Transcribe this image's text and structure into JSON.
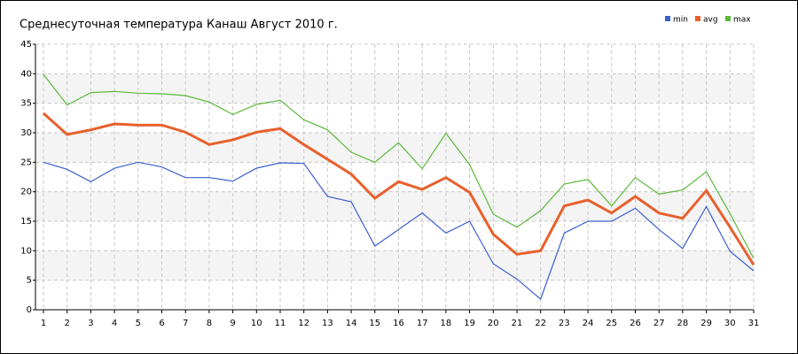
{
  "chart_data": {
    "type": "line",
    "title": "Среднесуточная температура Канаш  Август 2010 г.",
    "x": [
      1,
      2,
      3,
      4,
      5,
      6,
      7,
      8,
      9,
      10,
      11,
      12,
      13,
      14,
      15,
      16,
      17,
      18,
      19,
      20,
      21,
      22,
      23,
      24,
      25,
      26,
      27,
      28,
      29,
      30,
      31
    ],
    "series": [
      {
        "name": "min",
        "color": "#3b5fd0",
        "values": [
          25,
          23.8,
          21.7,
          24,
          25,
          24.2,
          22.4,
          22.4,
          21.8,
          24,
          24.9,
          24.8,
          19.2,
          18.3,
          10.8,
          13.6,
          16.4,
          13,
          15,
          7.8,
          5.2,
          1.8,
          13,
          15,
          15,
          17.2,
          13.6,
          10.4,
          17.5,
          9.9,
          6.6
        ]
      },
      {
        "name": "avg",
        "color": "#e8602c",
        "values": [
          33.3,
          29.7,
          30.5,
          31.5,
          31.3,
          31.3,
          30.1,
          28,
          28.8,
          30.1,
          30.7,
          28,
          25.5,
          23,
          18.9,
          21.7,
          20.4,
          22.4,
          19.9,
          12.8,
          9.4,
          10,
          17.6,
          18.6,
          16.4,
          19.2,
          16.4,
          15.5,
          20.2,
          14,
          7.6
        ]
      },
      {
        "name": "max",
        "color": "#5cb83a",
        "values": [
          39.9,
          34.7,
          36.8,
          37,
          36.7,
          36.6,
          36.3,
          35.2,
          33.1,
          34.8,
          35.5,
          32.2,
          30.5,
          26.7,
          25,
          28.3,
          23.9,
          29.9,
          24.6,
          16.2,
          14,
          16.8,
          21.3,
          22.1,
          17.6,
          22.4,
          19.6,
          20.3,
          23.4,
          16.3,
          8.7
        ]
      }
    ],
    "xlim": [
      1,
      31
    ],
    "xticks": [
      1,
      2,
      3,
      4,
      5,
      6,
      7,
      8,
      9,
      10,
      11,
      12,
      13,
      14,
      15,
      16,
      17,
      18,
      19,
      20,
      21,
      22,
      23,
      24,
      25,
      26,
      27,
      28,
      29,
      30,
      31
    ],
    "ylim": [
      0,
      45
    ],
    "yticks": [
      0,
      5,
      10,
      15,
      20,
      25,
      30,
      35,
      40,
      45
    ],
    "grid": true
  }
}
